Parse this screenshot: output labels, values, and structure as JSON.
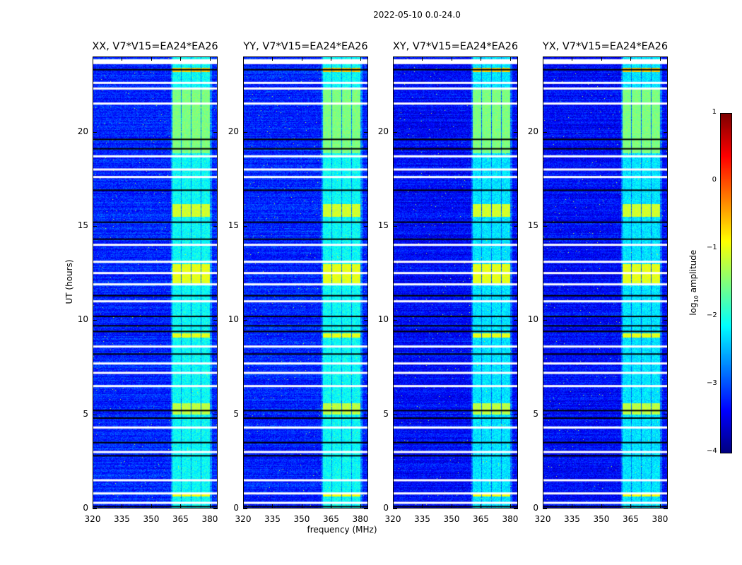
{
  "suptitle": "2022-05-10 0.0-24.0",
  "chart_data": {
    "type": "heatmap",
    "title": "2022-05-10 0.0-24.0",
    "xlabel": "frequency (MHz)",
    "ylabel": "UT (hours)",
    "xlim": [
      320,
      384
    ],
    "ylim": [
      0,
      24
    ],
    "xticks": [
      "320",
      "335",
      "350",
      "365",
      "380"
    ],
    "xtick_values": [
      320,
      335,
      350,
      365,
      380
    ],
    "yticks": [
      "0",
      "5",
      "10",
      "15",
      "20"
    ],
    "ytick_values": [
      0,
      5,
      10,
      15,
      20
    ],
    "panels": [
      {
        "title": "XX, V7*V15=EA24*EA26"
      },
      {
        "title": "YY, V7*V15=EA24*EA26"
      },
      {
        "title": "XY, V7*V15=EA24*EA26"
      },
      {
        "title": "YX, V7*V15=EA24*EA26"
      }
    ],
    "background_log10_amplitude": -3.2,
    "rfi_subbands_mhz": [
      [
        360.5,
        365
      ],
      [
        365.5,
        370
      ],
      [
        370.5,
        375
      ],
      [
        375.5,
        380
      ]
    ],
    "rfi_band_log10_amplitude": -2.1,
    "bright_intervals_hours": [
      {
        "from": 0.65,
        "to": 0.85,
        "level": -0.9
      },
      {
        "from": 5.0,
        "to": 5.6,
        "level": -1.2
      },
      {
        "from": 9.1,
        "to": 9.3,
        "level": -1.0
      },
      {
        "from": 12.0,
        "to": 13.0,
        "level": -1.0
      },
      {
        "from": 15.5,
        "to": 16.2,
        "level": -1.1
      },
      {
        "from": 18.9,
        "to": 22.3,
        "level": -1.5
      },
      {
        "from": 23.2,
        "to": 23.4,
        "level": -0.6
      }
    ],
    "flagged_rows_hours": [
      0.3,
      0.8,
      1.5,
      3.0,
      4.3,
      6.5,
      7.2,
      7.7,
      8.6,
      11.0,
      11.9,
      12.5,
      13.1,
      14.0,
      17.6,
      18.0,
      18.7,
      21.5,
      22.3,
      22.6,
      23.8
    ],
    "dark_rows_hours": [
      0.1,
      2.8,
      3.5,
      4.8,
      5.2,
      8.2,
      9.4,
      9.7,
      10.2,
      11.3,
      14.3,
      15.2,
      16.9,
      19.1,
      19.6,
      23.3
    ],
    "colorbar": {
      "label": "log10 amplitude",
      "label_main": "log",
      "label_sub": "10",
      "label_rest": " amplitude",
      "range": [
        -4,
        1
      ],
      "ticks": [
        "1",
        "0",
        "−1",
        "−2",
        "−3",
        "−4"
      ],
      "tick_values": [
        1,
        0,
        -1,
        -2,
        -3,
        -4
      ],
      "colormap": "jet"
    }
  }
}
